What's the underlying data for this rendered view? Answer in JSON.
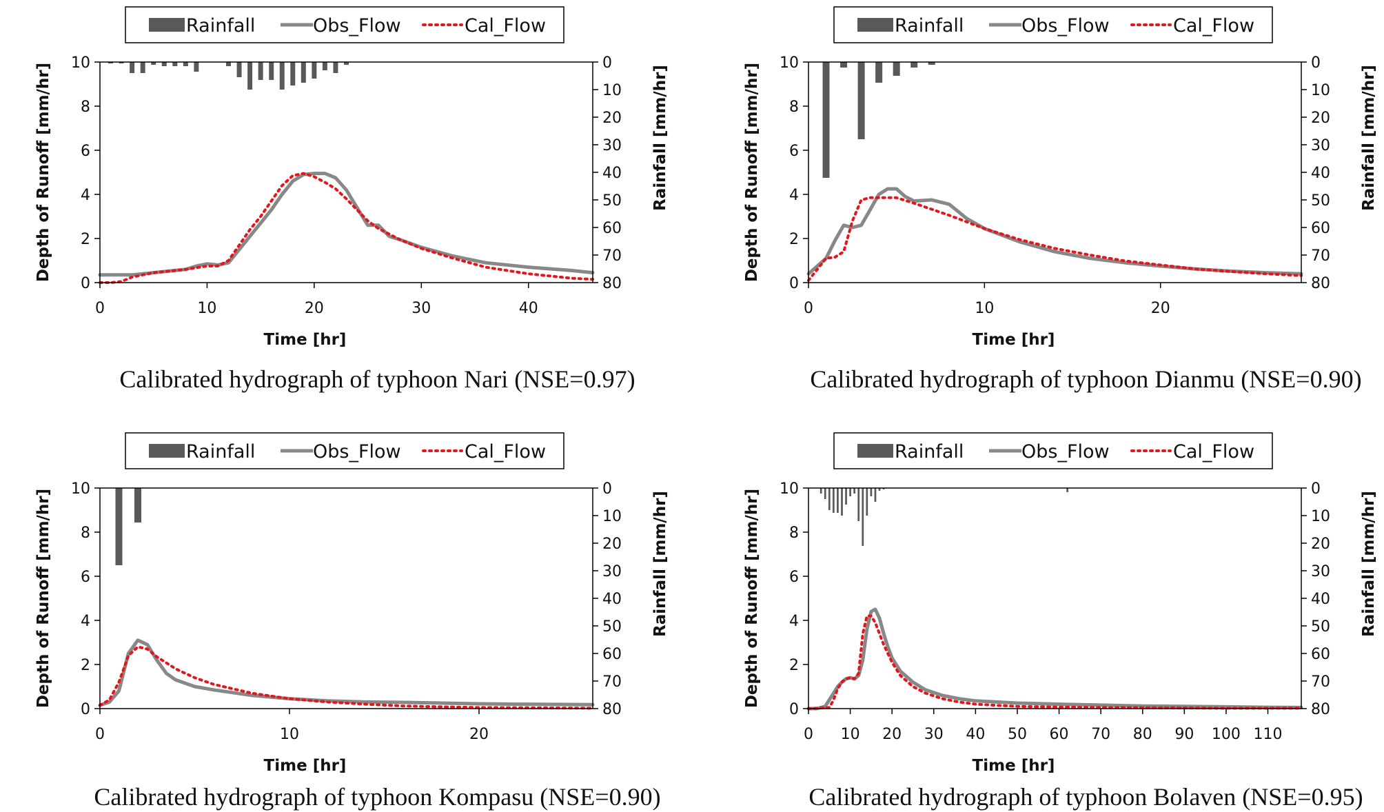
{
  "charts": [
    {
      "caption": "Calibrated hydrograph of typhoon Nari (NSE=0.97)",
      "chart_data": {
        "type": "line",
        "xlabel": "Time [hr]",
        "ylabel": "Depth of Runoff [mm/hr]",
        "y2label": "Rainfall [mm/hr]",
        "xlim": [
          0,
          46
        ],
        "xticks": [
          0,
          10,
          20,
          30,
          40
        ],
        "ylim": [
          0,
          10
        ],
        "yticks": [
          0,
          2,
          4,
          6,
          8,
          10
        ],
        "y2lim": [
          0,
          80
        ],
        "y2ticks": [
          0,
          10,
          20,
          30,
          40,
          50,
          60,
          70,
          80
        ],
        "legend": [
          "Rainfall",
          "Obs_Flow",
          "Cal_Flow"
        ],
        "legend_position": "top",
        "rainfall": {
          "x": [
            1,
            2,
            3,
            4,
            5,
            6,
            7,
            8,
            9,
            10,
            11,
            12,
            13,
            14,
            15,
            16,
            17,
            18,
            19,
            20,
            21,
            22,
            23
          ],
          "values": [
            0.5,
            0.5,
            4,
            4,
            1,
            1.5,
            1.5,
            1.5,
            3.5,
            0,
            0,
            1.5,
            5.5,
            10,
            6.5,
            6.5,
            10,
            8.5,
            7.5,
            6,
            3,
            4,
            1
          ]
        },
        "series": [
          {
            "name": "Obs_Flow",
            "x": [
              0,
              3,
              6,
              8,
              9,
              10,
              11,
              12,
              13,
              14,
              15,
              16,
              17,
              18,
              19,
              20,
              21,
              22,
              23,
              24,
              25,
              26,
              27,
              28,
              30,
              33,
              36,
              40,
              44,
              46
            ],
            "y": [
              0.35,
              0.35,
              0.5,
              0.6,
              0.75,
              0.85,
              0.8,
              0.9,
              1.5,
              2.1,
              2.7,
              3.3,
              4.0,
              4.6,
              4.9,
              4.95,
              4.95,
              4.75,
              4.2,
              3.4,
              2.6,
              2.6,
              2.1,
              1.95,
              1.6,
              1.2,
              0.9,
              0.7,
              0.55,
              0.45
            ]
          },
          {
            "name": "Cal_Flow",
            "x": [
              0,
              1,
              2,
              3,
              5,
              8,
              10,
              11,
              12,
              13,
              14,
              15,
              16,
              17,
              18,
              19,
              20,
              21,
              22,
              23,
              24,
              25,
              26,
              27,
              28,
              30,
              33,
              36,
              40,
              44,
              46
            ],
            "y": [
              0,
              0,
              0.05,
              0.25,
              0.45,
              0.6,
              0.75,
              0.75,
              1.0,
              1.7,
              2.4,
              3.0,
              3.7,
              4.4,
              4.85,
              4.95,
              4.8,
              4.55,
              4.25,
              3.8,
              3.3,
              2.8,
              2.45,
              2.2,
              1.95,
              1.55,
              1.1,
              0.7,
              0.4,
              0.2,
              0.15
            ]
          }
        ]
      }
    },
    {
      "caption": "Calibrated hydrograph of typhoon Dianmu (NSE=0.90)",
      "chart_data": {
        "type": "line",
        "xlabel": "Time [hr]",
        "ylabel": "Depth of Runoff [mm/hr]",
        "y2label": "Rainfall [mm/hr]",
        "xlim": [
          0,
          28
        ],
        "xticks": [
          0,
          10,
          20
        ],
        "ylim": [
          0,
          10
        ],
        "yticks": [
          0,
          2,
          4,
          6,
          8,
          10
        ],
        "y2lim": [
          0,
          80
        ],
        "y2ticks": [
          0,
          10,
          20,
          30,
          40,
          50,
          60,
          70,
          80
        ],
        "legend": [
          "Rainfall",
          "Obs_Flow",
          "Cal_Flow"
        ],
        "legend_position": "top",
        "rainfall": {
          "x": [
            1,
            2,
            3,
            4,
            5,
            6,
            7
          ],
          "values": [
            42,
            2,
            28,
            7.5,
            5,
            2,
            1
          ]
        },
        "series": [
          {
            "name": "Obs_Flow",
            "x": [
              0,
              1,
              1.5,
              2,
              2.5,
              3,
              3.5,
              4,
              4.5,
              5,
              5.5,
              6,
              7,
              8,
              9,
              10,
              12,
              14,
              16,
              18,
              20,
              22,
              24,
              26,
              28
            ],
            "y": [
              0.4,
              1.1,
              1.9,
              2.6,
              2.5,
              2.6,
              3.3,
              4.0,
              4.25,
              4.25,
              3.9,
              3.7,
              3.75,
              3.55,
              2.9,
              2.45,
              1.85,
              1.4,
              1.1,
              0.9,
              0.75,
              0.62,
              0.52,
              0.45,
              0.4
            ]
          },
          {
            "name": "Cal_Flow",
            "x": [
              0,
              1,
              1.5,
              2,
              2.5,
              3,
              3.5,
              4,
              5,
              6,
              8,
              10,
              12,
              14,
              16,
              18,
              20,
              22,
              24,
              26,
              28
            ],
            "y": [
              0.1,
              1.1,
              1.15,
              1.4,
              2.8,
              3.75,
              3.85,
              3.85,
              3.85,
              3.6,
              3.05,
              2.45,
              1.95,
              1.55,
              1.25,
              0.98,
              0.8,
              0.62,
              0.5,
              0.4,
              0.32
            ]
          }
        ]
      }
    },
    {
      "caption": "Calibrated hydrograph of typhoon Kompasu (NSE=0.90)",
      "chart_data": {
        "type": "line",
        "xlabel": "Time [hr]",
        "ylabel": "Depth of Runoff [mm/hr]",
        "y2label": "Rainfall [mm/hr]",
        "xlim": [
          0,
          26
        ],
        "xticks": [
          0,
          10,
          20
        ],
        "ylim": [
          0,
          10
        ],
        "yticks": [
          0,
          2,
          4,
          6,
          8,
          10
        ],
        "y2lim": [
          0,
          80
        ],
        "y2ticks": [
          0,
          10,
          20,
          30,
          40,
          50,
          60,
          70,
          80
        ],
        "legend": [
          "Rainfall",
          "Obs_Flow",
          "Cal_Flow"
        ],
        "legend_position": "top",
        "rainfall": {
          "x": [
            1,
            2
          ],
          "values": [
            28,
            12.5
          ]
        },
        "series": [
          {
            "name": "Obs_Flow",
            "x": [
              0,
              0.5,
              1,
              1.5,
              2,
              2.5,
              3,
              3.5,
              4,
              5,
              6,
              8,
              10,
              12,
              14,
              16,
              18,
              20,
              22,
              24,
              26
            ],
            "y": [
              0.15,
              0.3,
              0.8,
              2.5,
              3.1,
              2.9,
              2.2,
              1.6,
              1.3,
              1.0,
              0.85,
              0.6,
              0.45,
              0.35,
              0.3,
              0.28,
              0.25,
              0.22,
              0.2,
              0.19,
              0.18
            ]
          },
          {
            "name": "Cal_Flow",
            "x": [
              0,
              0.5,
              1,
              1.5,
              2,
              2.5,
              3,
              4,
              5,
              6,
              8,
              10,
              12,
              14,
              16,
              18,
              20,
              22,
              24,
              26
            ],
            "y": [
              0.15,
              0.4,
              1.2,
              2.4,
              2.8,
              2.7,
              2.35,
              1.8,
              1.4,
              1.1,
              0.7,
              0.45,
              0.3,
              0.2,
              0.12,
              0.08,
              0.05,
              0.04,
              0.03,
              0.02
            ]
          }
        ]
      }
    },
    {
      "caption": "Calibrated hydrograph of typhoon Bolaven (NSE=0.95)",
      "chart_data": {
        "type": "line",
        "xlabel": "Time [hr]",
        "ylabel": "Depth of Runoff [mm/hr]",
        "y2label": "Rainfall [mm/hr]",
        "xlim": [
          0,
          118
        ],
        "xticks": [
          0,
          10,
          20,
          30,
          40,
          50,
          60,
          70,
          80,
          90,
          100,
          110
        ],
        "ylim": [
          0,
          10
        ],
        "yticks": [
          0,
          2,
          4,
          6,
          8,
          10
        ],
        "y2lim": [
          0,
          80
        ],
        "y2ticks": [
          0,
          10,
          20,
          30,
          40,
          50,
          60,
          70,
          80
        ],
        "legend": [
          "Rainfall",
          "Obs_Flow",
          "Cal_Flow"
        ],
        "legend_position": "top",
        "rainfall": {
          "x": [
            3,
            4,
            5,
            6,
            7,
            8,
            9,
            10,
            11,
            12,
            13,
            14,
            15,
            16,
            17,
            18,
            62
          ],
          "values": [
            2,
            4,
            8,
            9,
            9,
            10,
            6,
            3,
            2,
            12,
            21,
            10,
            3,
            5,
            1,
            0.5,
            1.5
          ]
        },
        "series": [
          {
            "name": "Obs_Flow",
            "x": [
              0,
              2,
              4,
              5,
              6,
              7,
              8,
              9,
              10,
              11,
              12,
              13,
              14,
              15,
              16,
              17,
              18,
              19,
              20,
              22,
              25,
              28,
              32,
              36,
              40,
              50,
              60,
              70,
              80,
              90,
              100,
              110,
              118
            ],
            "y": [
              0,
              0,
              0.1,
              0.4,
              0.7,
              1.0,
              1.2,
              1.35,
              1.4,
              1.35,
              1.5,
              2.2,
              3.6,
              4.4,
              4.5,
              4.1,
              3.4,
              2.8,
              2.3,
              1.7,
              1.2,
              0.85,
              0.6,
              0.45,
              0.35,
              0.25,
              0.2,
              0.16,
              0.12,
              0.1,
              0.08,
              0.06,
              0.05
            ]
          },
          {
            "name": "Cal_Flow",
            "x": [
              0,
              5,
              6,
              7,
              8,
              9,
              10,
              11,
              12,
              13,
              14,
              15,
              16,
              17,
              18,
              20,
              22,
              25,
              28,
              32,
              36,
              40,
              50,
              60,
              70,
              80,
              90,
              100,
              110,
              118
            ],
            "y": [
              0,
              0.05,
              0.4,
              0.9,
              1.2,
              1.35,
              1.4,
              1.35,
              1.6,
              3.4,
              4.2,
              4.2,
              3.9,
              3.4,
              2.9,
              2.1,
              1.5,
              1.0,
              0.7,
              0.45,
              0.3,
              0.2,
              0.1,
              0.07,
              0.05,
              0.04,
              0.03,
              0.02,
              0.02,
              0.02
            ]
          }
        ]
      }
    }
  ],
  "colors": {
    "rainfall": "#595959",
    "obs_flow": "#888888",
    "cal_flow": "#e4161b",
    "axis": "#000000"
  }
}
